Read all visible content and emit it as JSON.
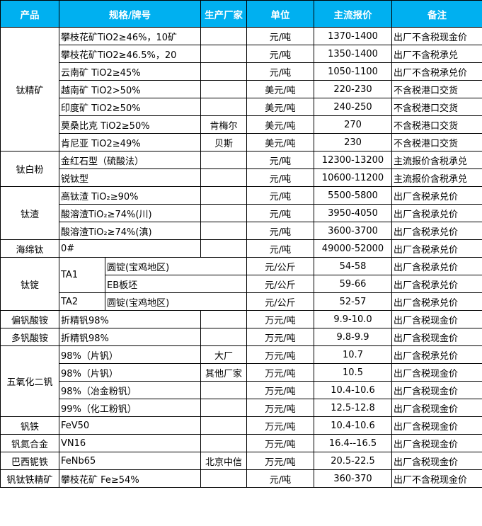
{
  "headers": [
    "产品",
    "规格/牌号",
    "生产厂家",
    "单位",
    "主流报价",
    "备注"
  ],
  "groups": [
    {
      "product": "钛精矿",
      "rows": [
        {
          "spec": "攀枝花矿TiO2≥46%，10矿",
          "maker": "",
          "unit": "元/吨",
          "price": "1370-1400",
          "note": "出厂不含税现金价"
        },
        {
          "spec": "攀枝花矿TiO2≥46.5%，20",
          "maker": "",
          "unit": "元/吨",
          "price": "1350-1400",
          "note": "出厂不含税承兑"
        },
        {
          "spec": "云南矿 TiO2≥45%",
          "maker": "",
          "unit": "元/吨",
          "price": "1050-1100",
          "note": "出厂不含税承兑价"
        },
        {
          "spec": "越南矿 TiO2>50%",
          "maker": "",
          "unit": "美元/吨",
          "price": "220-230",
          "note": "不含税港口交货"
        },
        {
          "spec": "印度矿 TiO2≥50%",
          "maker": "",
          "unit": "美元/吨",
          "price": "240-250",
          "note": "不含税港口交货"
        },
        {
          "spec": "莫桑比克 TiO2≥50%",
          "maker": "肯梅尔",
          "unit": "美元/吨",
          "price": "270",
          "note": "不含税港口交货"
        },
        {
          "spec": "肯尼亚 TiO2≥49%",
          "maker": "贝斯",
          "unit": "美元/吨",
          "price": "230",
          "note": "不含税港口交货"
        }
      ]
    },
    {
      "product": "钛白粉",
      "rows": [
        {
          "spec": "金红石型（硫酸法）",
          "maker": "",
          "unit": "元/吨",
          "price": "12300-13200",
          "note": "主流报价含税承兑"
        },
        {
          "spec": "锐钛型",
          "maker": "",
          "unit": "元/吨",
          "price": "10600-11200",
          "note": "主流报价含税承兑"
        }
      ]
    },
    {
      "product": "钛渣",
      "rows": [
        {
          "spec": "高钛渣 TiO₂≥90%",
          "maker": "",
          "unit": "元/吨",
          "price": "5500-5800",
          "note": "出厂含税承兑价"
        },
        {
          "spec": "酸溶渣TiO₂≥74%(川)",
          "maker": "",
          "unit": "元/吨",
          "price": "3950-4050",
          "note": "出厂含税承兑价"
        },
        {
          "spec": "酸溶渣TiO₂≥74%(滇)",
          "maker": "",
          "unit": "元/吨",
          "price": "3600-3700",
          "note": "出厂含税承兑价"
        }
      ]
    },
    {
      "product": "海绵钛",
      "rows": [
        {
          "spec": "0#",
          "maker": "",
          "unit": "元/吨",
          "price": "49000-52000",
          "note": "出厂含税承兑价"
        }
      ]
    },
    {
      "product": "钛锭",
      "rows": [
        {
          "grade": "TA1",
          "sub": "圆锭(宝鸡地区)",
          "unit": "元/公斤",
          "price": "54-58",
          "note": "出厂含税承兑价"
        },
        {
          "grade": "TA1",
          "sub": "EB板坯",
          "unit": "元/公斤",
          "price": "59-66",
          "note": "出厂含税承兑价"
        },
        {
          "grade": "TA2",
          "sub": "圆锭(宝鸡地区)",
          "unit": "元/公斤",
          "price": "52-57",
          "note": "出厂含税承兑价"
        }
      ]
    },
    {
      "product": "偏钒酸铵",
      "rows": [
        {
          "spec": "折精钒98%",
          "maker": "",
          "unit": "万元/吨",
          "price": "9.9-10.0",
          "note": "出厂含税现金价"
        }
      ]
    },
    {
      "product": "多钒酸铵",
      "rows": [
        {
          "spec": "折精钒98%",
          "maker": "",
          "unit": "万元/吨",
          "price": "9.8-9.9",
          "note": "出厂含税现金价"
        }
      ]
    },
    {
      "product": "五氧化二钒",
      "rows": [
        {
          "spec": "98%（片钒）",
          "maker": "大厂",
          "unit": "万元/吨",
          "price": "10.7",
          "note": "出厂含税承兑价"
        },
        {
          "spec": "98%（片钒）",
          "maker": "其他厂家",
          "unit": "万元/吨",
          "price": "10.5",
          "note": "出厂含税现金价"
        },
        {
          "spec": "98%（冶金粉钒）",
          "maker": "",
          "unit": "万元/吨",
          "price": "10.4-10.6",
          "note": "出厂含税现金价"
        },
        {
          "spec": "99%（化工粉钒）",
          "maker": "",
          "unit": "万元/吨",
          "price": "12.5-12.8",
          "note": "出厂含税现金价"
        }
      ]
    },
    {
      "product": "钒铁",
      "rows": [
        {
          "spec": "FeV50",
          "maker": "",
          "unit": "万元/吨",
          "price": "10.4-10.6",
          "note": "出厂含税现金价"
        }
      ]
    },
    {
      "product": "钒氮合金",
      "rows": [
        {
          "spec": "VN16",
          "maker": "",
          "unit": "万元/吨",
          "price": "16.4--16.5",
          "note": "出厂含税现金价"
        }
      ]
    },
    {
      "product": "巴西铌铁",
      "rows": [
        {
          "spec": "FeNb65",
          "maker": "北京中信",
          "unit": "万元/吨",
          "price": "20.5-22.5",
          "note": "出厂含税现金价"
        }
      ]
    },
    {
      "product": "钒钛铁精矿",
      "rows": [
        {
          "spec": "攀枝花矿 Fe≥54%",
          "maker": "",
          "unit": "元/吨",
          "price": "360-370",
          "note": "出厂不含税现金价"
        }
      ]
    }
  ],
  "colors": {
    "header_bg": "#00b0f0",
    "header_text": "#ffffff"
  }
}
